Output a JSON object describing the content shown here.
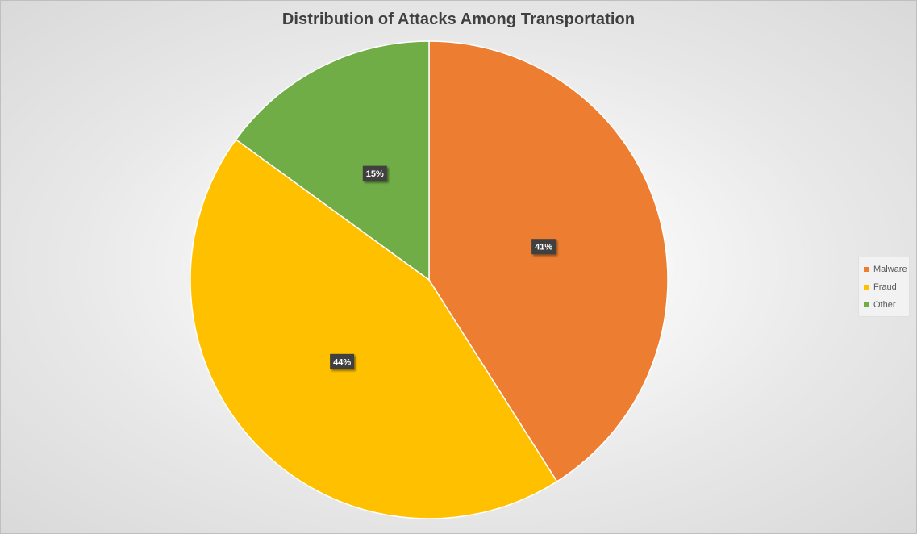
{
  "chart_data": {
    "type": "pie",
    "title": "Distribution of Attacks Among Transportation",
    "categories": [
      "Malware",
      "Fraud",
      "Other"
    ],
    "values": [
      41,
      44,
      15
    ],
    "data_labels": [
      "41%",
      "44%",
      "15%"
    ],
    "colors": [
      "#ED7D31",
      "#FFC000",
      "#70AD47"
    ],
    "legend_position": "right",
    "start_angle": "12 o'clock, clockwise"
  }
}
